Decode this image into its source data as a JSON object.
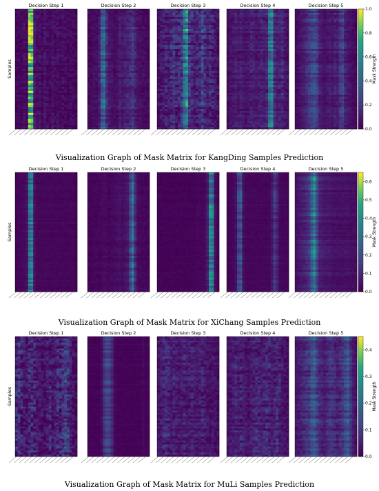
{
  "chart_data": [
    {
      "type": "heatmap",
      "caption": "Visualization Graph of Mask Matrix for KangDing Samples Prediction",
      "ylabel": "Samples",
      "colorbar": {
        "label": "Mask Strength",
        "range": [
          0.0,
          1.0
        ],
        "ticks": [
          "0.0",
          "0.2",
          "0.4",
          "0.6",
          "0.8",
          "1.0"
        ],
        "colormap": "viridis"
      },
      "panels": [
        {
          "title": "Decision Step 1",
          "profile": [
            0.02,
            0.03,
            0.02,
            0.05,
            0.02,
            0.8,
            0.75,
            0.08,
            0.05,
            0.06,
            0.03,
            0.07,
            0.05,
            0.03,
            0.06,
            0.04,
            0.05,
            0.03,
            0.05,
            0.03,
            0.02,
            0.04,
            0.03,
            0.02
          ],
          "noise": 0.08
        },
        {
          "title": "Decision Step 2",
          "profile": [
            0.02,
            0.03,
            0.05,
            0.04,
            0.08,
            0.35,
            0.4,
            0.15,
            0.08,
            0.06,
            0.04,
            0.05,
            0.1,
            0.08,
            0.1,
            0.12,
            0.14,
            0.2,
            0.12,
            0.06,
            0.05,
            0.04,
            0.03,
            0.02
          ],
          "noise": 0.06
        },
        {
          "title": "Decision Step 3",
          "profile": [
            0.05,
            0.08,
            0.1,
            0.12,
            0.1,
            0.15,
            0.18,
            0.12,
            0.15,
            0.2,
            0.45,
            0.55,
            0.2,
            0.15,
            0.1,
            0.12,
            0.15,
            0.25,
            0.15,
            0.1,
            0.15,
            0.12,
            0.08,
            0.06
          ],
          "noise": 0.12
        },
        {
          "title": "Decision Step 4",
          "profile": [
            0.04,
            0.06,
            0.08,
            0.1,
            0.08,
            0.1,
            0.08,
            0.06,
            0.08,
            0.12,
            0.1,
            0.08,
            0.1,
            0.12,
            0.1,
            0.12,
            0.45,
            0.5,
            0.15,
            0.1,
            0.12,
            0.15,
            0.08,
            0.05
          ],
          "noise": 0.07
        },
        {
          "title": "Decision Step 5",
          "profile": [
            0.03,
            0.05,
            0.08,
            0.1,
            0.15,
            0.2,
            0.25,
            0.3,
            0.25,
            0.12,
            0.08,
            0.06,
            0.08,
            0.1,
            0.08,
            0.12,
            0.1,
            0.2,
            0.25,
            0.12,
            0.08,
            0.06,
            0.04,
            0.03
          ],
          "noise": 0.05
        }
      ]
    },
    {
      "type": "heatmap",
      "caption": "Visualization Graph of Mask Matrix for XiChang Samples Prediction",
      "ylabel": "Samples",
      "colorbar": {
        "label": "Mask Strength",
        "range": [
          0.0,
          0.65
        ],
        "ticks": [
          "0.0",
          "0.1",
          "0.2",
          "0.3",
          "0.4",
          "0.5",
          "0.6"
        ],
        "colormap": "viridis"
      },
      "panels": [
        {
          "title": "Decision Step 1",
          "profile": [
            0.01,
            0.02,
            0.02,
            0.03,
            0.05,
            0.45,
            0.5,
            0.05,
            0.02,
            0.02,
            0.02,
            0.02,
            0.02,
            0.02,
            0.02,
            0.02,
            0.02,
            0.02,
            0.02,
            0.02,
            0.02,
            0.02,
            0.02,
            0.01
          ],
          "noise": 0.02
        },
        {
          "title": "Decision Step 2",
          "profile": [
            0.01,
            0.01,
            0.02,
            0.02,
            0.02,
            0.03,
            0.04,
            0.03,
            0.02,
            0.03,
            0.04,
            0.05,
            0.06,
            0.04,
            0.06,
            0.08,
            0.25,
            0.45,
            0.15,
            0.04,
            0.03,
            0.02,
            0.02,
            0.01
          ],
          "noise": 0.03
        },
        {
          "title": "Decision Step 3",
          "profile": [
            0.01,
            0.01,
            0.01,
            0.01,
            0.01,
            0.01,
            0.01,
            0.01,
            0.01,
            0.01,
            0.01,
            0.01,
            0.01,
            0.01,
            0.01,
            0.02,
            0.02,
            0.02,
            0.03,
            0.1,
            0.55,
            0.5,
            0.05,
            0.01
          ],
          "noise": 0.02
        },
        {
          "title": "Decision Step 4",
          "profile": [
            0.01,
            0.01,
            0.02,
            0.05,
            0.25,
            0.3,
            0.05,
            0.02,
            0.02,
            0.02,
            0.02,
            0.02,
            0.02,
            0.02,
            0.02,
            0.02,
            0.02,
            0.08,
            0.2,
            0.12,
            0.03,
            0.02,
            0.02,
            0.01
          ],
          "noise": 0.02
        },
        {
          "title": "Decision Step 5",
          "profile": [
            0.05,
            0.08,
            0.1,
            0.12,
            0.15,
            0.2,
            0.4,
            0.55,
            0.3,
            0.12,
            0.1,
            0.08,
            0.08,
            0.08,
            0.06,
            0.06,
            0.06,
            0.06,
            0.06,
            0.06,
            0.06,
            0.05,
            0.05,
            0.05
          ],
          "noise": 0.03
        }
      ]
    },
    {
      "type": "heatmap",
      "caption": "Visualization Graph of Mask Matrix for MuLi Samples Prediction",
      "ylabel": "Samples",
      "colorbar": {
        "label": "Mask Strength",
        "range": [
          0.0,
          0.45
        ],
        "ticks": [
          "0.0",
          "0.1",
          "0.2",
          "0.3",
          "0.4"
        ],
        "colormap": "viridis"
      },
      "panels": [
        {
          "title": "Decision Step 1",
          "profile": [
            0.15,
            0.18,
            0.12,
            0.1,
            0.08,
            0.12,
            0.15,
            0.12,
            0.1,
            0.08,
            0.06,
            0.05,
            0.1,
            0.12,
            0.08,
            0.1,
            0.15,
            0.12,
            0.2,
            0.25,
            0.18,
            0.1,
            0.05,
            0.03
          ],
          "noise": 0.15
        },
        {
          "title": "Decision Step 2",
          "profile": [
            0.01,
            0.01,
            0.01,
            0.01,
            0.01,
            0.05,
            0.2,
            0.28,
            0.25,
            0.15,
            0.03,
            0.01,
            0.01,
            0.01,
            0.01,
            0.01,
            0.01,
            0.01,
            0.01,
            0.01,
            0.01,
            0.03,
            0.01,
            0.01
          ],
          "noise": 0.02
        },
        {
          "title": "Decision Step 3",
          "profile": [
            0.08,
            0.1,
            0.12,
            0.15,
            0.12,
            0.1,
            0.12,
            0.1,
            0.08,
            0.1,
            0.12,
            0.1,
            0.1,
            0.12,
            0.1,
            0.08,
            0.1,
            0.12,
            0.1,
            0.08,
            0.06,
            0.08,
            0.06,
            0.04
          ],
          "noise": 0.1
        },
        {
          "title": "Decision Step 4",
          "profile": [
            0.06,
            0.08,
            0.1,
            0.12,
            0.1,
            0.12,
            0.1,
            0.08,
            0.06,
            0.1,
            0.12,
            0.15,
            0.12,
            0.1,
            0.12,
            0.15,
            0.12,
            0.1,
            0.12,
            0.15,
            0.12,
            0.08,
            0.06,
            0.04
          ],
          "noise": 0.1
        },
        {
          "title": "Decision Step 5",
          "profile": [
            0.08,
            0.1,
            0.12,
            0.15,
            0.18,
            0.2,
            0.3,
            0.35,
            0.25,
            0.15,
            0.12,
            0.1,
            0.15,
            0.2,
            0.18,
            0.15,
            0.12,
            0.15,
            0.2,
            0.28,
            0.35,
            0.2,
            0.1,
            0.06
          ],
          "noise": 0.06
        }
      ]
    }
  ]
}
